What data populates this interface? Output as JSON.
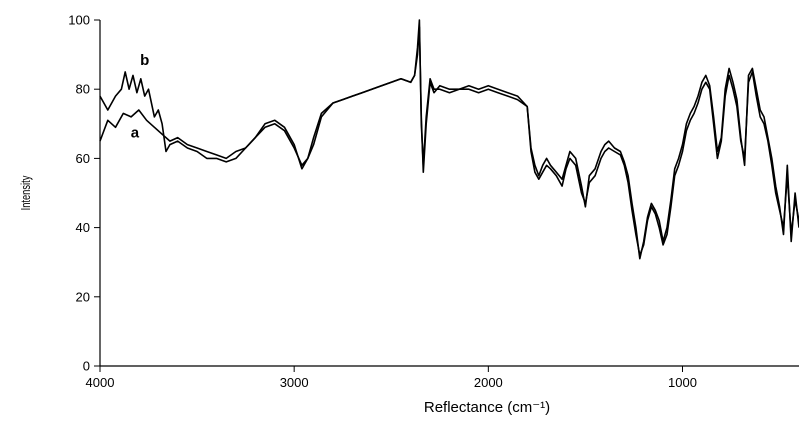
{
  "chart_data": {
    "type": "line",
    "title": "",
    "xlabel": "Reflectance (cm⁻¹)",
    "ylabel": "Intensity",
    "xlim": [
      4000,
      400
    ],
    "ylim": [
      0,
      100
    ],
    "x_reversed": true,
    "xticks": [
      4000,
      3000,
      2000,
      1000
    ],
    "yticks": [
      0,
      20,
      40,
      60,
      80,
      100
    ],
    "grid": false,
    "legend": "none",
    "line_color": "#000000",
    "series": [
      {
        "name": "a",
        "x": [
          4000,
          3960,
          3920,
          3880,
          3840,
          3800,
          3760,
          3720,
          3680,
          3640,
          3600,
          3550,
          3500,
          3450,
          3400,
          3350,
          3300,
          3250,
          3200,
          3150,
          3100,
          3050,
          3000,
          2960,
          2930,
          2900,
          2860,
          2800,
          2750,
          2700,
          2650,
          2600,
          2550,
          2500,
          2450,
          2400,
          2380,
          2365,
          2355,
          2345,
          2335,
          2320,
          2300,
          2280,
          2250,
          2200,
          2150,
          2100,
          2050,
          2000,
          1950,
          1900,
          1850,
          1800,
          1780,
          1760,
          1740,
          1720,
          1700,
          1680,
          1650,
          1620,
          1600,
          1580,
          1550,
          1520,
          1500,
          1480,
          1450,
          1420,
          1400,
          1380,
          1350,
          1320,
          1300,
          1280,
          1260,
          1240,
          1220,
          1200,
          1180,
          1160,
          1140,
          1120,
          1100,
          1080,
          1060,
          1040,
          1020,
          1000,
          980,
          960,
          940,
          920,
          900,
          880,
          860,
          840,
          820,
          800,
          780,
          760,
          740,
          720,
          700,
          680,
          660,
          640,
          620,
          600,
          580,
          560,
          540,
          520,
          500,
          480,
          460,
          440,
          420,
          400
        ],
        "y": [
          65,
          71,
          69,
          73,
          72,
          74,
          71,
          69,
          67,
          65,
          66,
          64,
          63,
          62,
          61,
          60,
          62,
          63,
          66,
          69,
          70,
          68,
          63,
          58,
          60,
          66,
          73,
          76,
          77,
          78,
          79,
          80,
          81,
          82,
          83,
          82,
          84,
          92,
          100,
          70,
          58,
          72,
          83,
          80,
          80,
          79,
          80,
          80,
          79,
          80,
          79,
          78,
          77,
          75,
          62,
          56,
          54,
          56,
          58,
          57,
          55,
          52,
          57,
          60,
          58,
          50,
          47,
          53,
          55,
          60,
          62,
          63,
          62,
          61,
          58,
          53,
          45,
          38,
          32,
          35,
          42,
          46,
          44,
          40,
          35,
          38,
          46,
          55,
          58,
          62,
          68,
          71,
          73,
          76,
          80,
          82,
          80,
          70,
          60,
          65,
          78,
          84,
          80,
          75,
          65,
          60,
          82,
          85,
          78,
          72,
          70,
          65,
          58,
          50,
          45,
          40,
          55,
          38,
          48,
          42
        ]
      },
      {
        "name": "b",
        "x": [
          4000,
          3960,
          3920,
          3890,
          3870,
          3850,
          3830,
          3810,
          3790,
          3770,
          3750,
          3720,
          3700,
          3680,
          3660,
          3640,
          3600,
          3550,
          3500,
          3450,
          3400,
          3350,
          3300,
          3250,
          3200,
          3150,
          3100,
          3050,
          3000,
          2960,
          2930,
          2900,
          2860,
          2800,
          2750,
          2700,
          2650,
          2600,
          2550,
          2500,
          2450,
          2400,
          2380,
          2365,
          2355,
          2345,
          2335,
          2320,
          2300,
          2280,
          2250,
          2200,
          2150,
          2100,
          2050,
          2000,
          1950,
          1900,
          1850,
          1800,
          1780,
          1760,
          1740,
          1720,
          1700,
          1680,
          1650,
          1620,
          1600,
          1580,
          1550,
          1520,
          1500,
          1480,
          1450,
          1420,
          1400,
          1380,
          1350,
          1320,
          1300,
          1280,
          1260,
          1240,
          1220,
          1200,
          1180,
          1160,
          1140,
          1120,
          1100,
          1080,
          1060,
          1040,
          1020,
          1000,
          980,
          960,
          940,
          920,
          900,
          880,
          860,
          840,
          820,
          800,
          780,
          760,
          740,
          720,
          700,
          680,
          660,
          640,
          620,
          600,
          580,
          560,
          540,
          520,
          500,
          480,
          460,
          440,
          420,
          400
        ],
        "y": [
          78,
          74,
          78,
          80,
          85,
          80,
          84,
          79,
          83,
          78,
          80,
          72,
          74,
          70,
          62,
          64,
          65,
          63,
          62,
          60,
          60,
          59,
          60,
          63,
          66,
          70,
          71,
          69,
          64,
          57,
          60,
          64,
          72,
          76,
          77,
          78,
          79,
          80,
          81,
          82,
          83,
          82,
          84,
          90,
          98,
          72,
          56,
          70,
          82,
          79,
          81,
          80,
          80,
          81,
          80,
          81,
          80,
          79,
          78,
          75,
          63,
          58,
          55,
          58,
          60,
          58,
          56,
          54,
          58,
          62,
          60,
          52,
          46,
          55,
          57,
          62,
          64,
          65,
          63,
          62,
          59,
          55,
          47,
          40,
          31,
          36,
          43,
          47,
          45,
          42,
          36,
          40,
          48,
          57,
          60,
          64,
          70,
          73,
          75,
          78,
          82,
          84,
          81,
          72,
          62,
          66,
          80,
          86,
          82,
          77,
          66,
          58,
          84,
          86,
          80,
          74,
          72,
          66,
          60,
          52,
          46,
          38,
          58,
          36,
          50,
          40
        ]
      }
    ],
    "annotations": [
      {
        "text": "a",
        "x": 3820,
        "y": 66
      },
      {
        "text": "b",
        "x": 3770,
        "y": 87
      }
    ]
  }
}
